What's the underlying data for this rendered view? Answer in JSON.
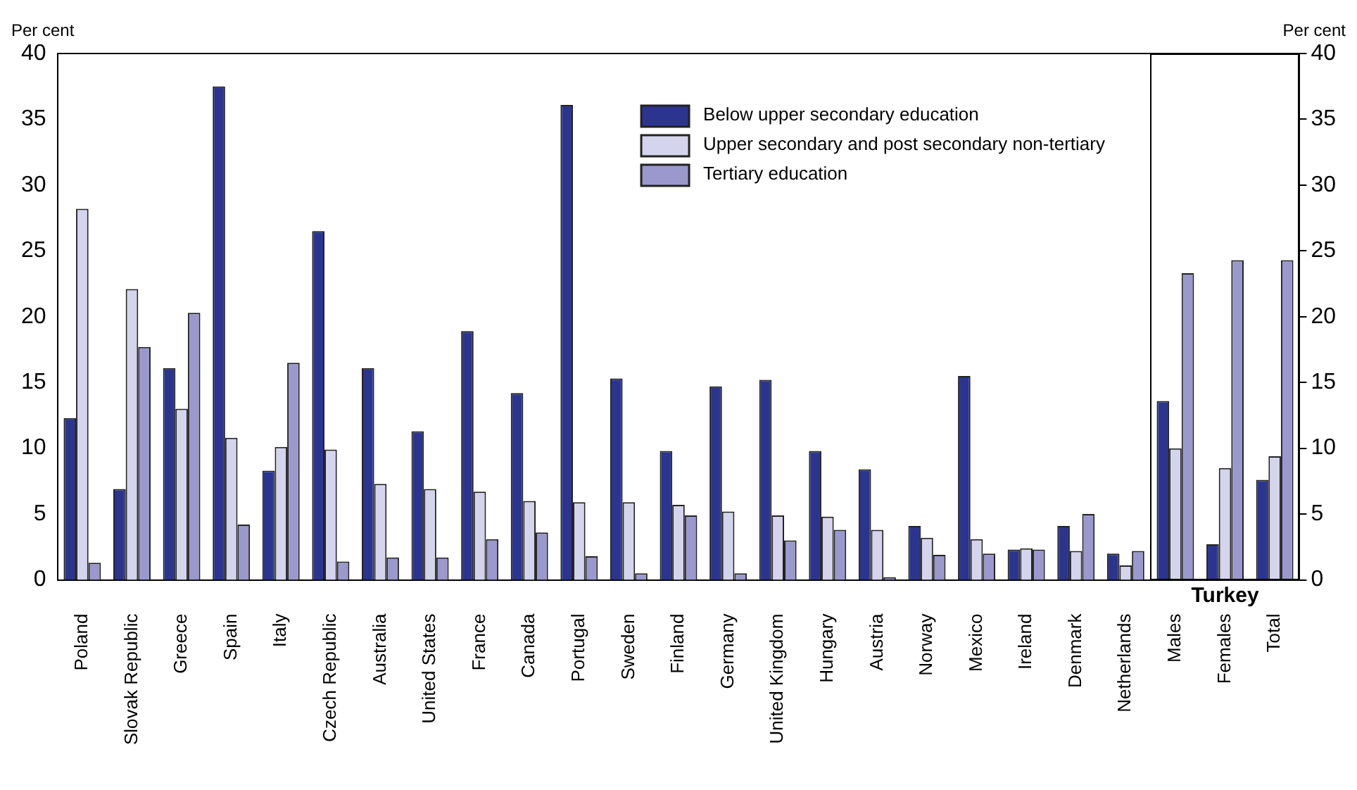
{
  "chart_data": {
    "type": "bar",
    "categories": [
      "Poland",
      "Slovak Republic",
      "Greece",
      "Spain",
      "Italy",
      "Czech Republic",
      "Australia",
      "United States",
      "France",
      "Canada",
      "Portugal",
      "Sweden",
      "Finland",
      "Germany",
      "United Kingdom",
      "Hungary",
      "Austria",
      "Norway",
      "Mexico",
      "Ireland",
      "Denmark",
      "Netherlands",
      "Males",
      "Females",
      "Total"
    ],
    "series": [
      {
        "name": "Below upper secondary education",
        "color": "#2b3590",
        "values": [
          12.3,
          6.9,
          16.1,
          37.5,
          8.3,
          26.5,
          16.1,
          11.3,
          18.9,
          14.2,
          36.1,
          15.3,
          9.8,
          14.7,
          15.2,
          9.8,
          8.4,
          4.1,
          15.5,
          2.3,
          4.1,
          2.0,
          13.6,
          2.7,
          7.6
        ]
      },
      {
        "name": "Upper secondary and post secondary non-tertiary",
        "color": "#d4d4ec",
        "values": [
          28.2,
          22.1,
          13.0,
          10.8,
          10.1,
          9.9,
          7.3,
          6.9,
          6.7,
          6.0,
          5.9,
          5.9,
          5.7,
          5.2,
          4.9,
          4.8,
          3.8,
          3.2,
          3.1,
          2.4,
          2.2,
          1.1,
          10.0,
          8.5,
          9.4
        ]
      },
      {
        "name": "Tertiary education",
        "color": "#9a98cc",
        "values": [
          1.3,
          17.7,
          20.3,
          4.2,
          16.5,
          1.4,
          1.7,
          1.7,
          3.1,
          3.6,
          1.8,
          0.5,
          4.9,
          0.5,
          3.0,
          3.8,
          0.2,
          1.9,
          2.0,
          2.3,
          5.0,
          2.2,
          23.3,
          24.3,
          24.3
        ]
      }
    ],
    "ylabel": "Per cent",
    "y2label": "Per cent",
    "ylim": [
      0,
      40
    ],
    "yticks": [
      0,
      5,
      10,
      15,
      20,
      25,
      30,
      35,
      40
    ],
    "y2lim": [
      0,
      40
    ],
    "y2ticks": [
      0,
      5,
      10,
      15,
      20,
      25,
      30,
      35,
      40
    ],
    "annotations": [
      "Turkey"
    ],
    "grid": false,
    "legend": "top"
  }
}
